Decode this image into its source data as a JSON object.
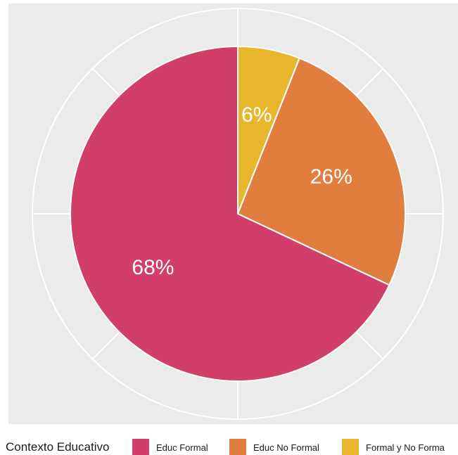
{
  "chart_data": {
    "type": "pie",
    "title": "",
    "slices": [
      {
        "label": "Formal y No Forma",
        "value": 6,
        "display": "6%",
        "color": "#E8B62C"
      },
      {
        "label": "Educ No Formal",
        "value": 26,
        "display": "26%",
        "color": "#E27D40"
      },
      {
        "label": "Educ Formal",
        "value": 68,
        "display": "68%",
        "color": "#D13E6A"
      }
    ],
    "legend": {
      "title": "Contexto Educativo",
      "placement": "bottom",
      "items": [
        {
          "label": "Educ Formal",
          "color": "#D13E6A"
        },
        {
          "label": "Educ No Formal",
          "color": "#E27D40"
        },
        {
          "label": "Formal y No Forma",
          "color": "#E8B62C"
        }
      ]
    },
    "panel_background": "#EBEBEB",
    "grid": true
  }
}
